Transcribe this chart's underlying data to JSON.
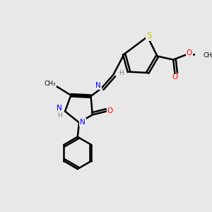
{
  "background_color": "#e8e8e8",
  "bond_color": "#000000",
  "atom_colors": {
    "N": "#0000ff",
    "O": "#ff0000",
    "S": "#cccc00",
    "H": "#808080",
    "C": "#000000"
  },
  "figsize": [
    3.0,
    3.0
  ],
  "dpi": 100
}
